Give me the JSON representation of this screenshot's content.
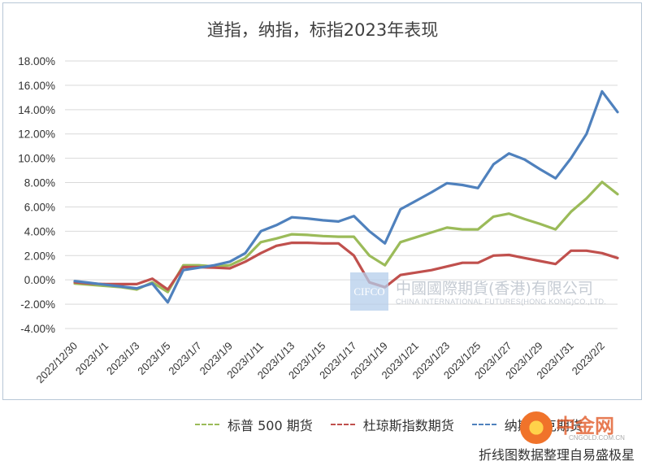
{
  "chart_data": {
    "type": "line",
    "title": "道指，纳指，标指2023年表现",
    "yticks": [
      "-4.00%",
      "-2.00%",
      "0.00%",
      "2.00%",
      "4.00%",
      "6.00%",
      "8.00%",
      "10.00%",
      "12.00%",
      "14.00%",
      "16.00%",
      "18.00%"
    ],
    "ylim": [
      -4,
      18
    ],
    "x": [
      "2022/12/30",
      "2022/12/31",
      "2023/1/1",
      "2023/1/2",
      "2023/1/3",
      "2023/1/4",
      "2023/1/5",
      "2023/1/6",
      "2023/1/7",
      "2023/1/8",
      "2023/1/9",
      "2023/1/10",
      "2023/1/11",
      "2023/1/12",
      "2023/1/13",
      "2023/1/14",
      "2023/1/15",
      "2023/1/16",
      "2023/1/17",
      "2023/1/18",
      "2023/1/19",
      "2023/1/20",
      "2023/1/21",
      "2023/1/22",
      "2023/1/23",
      "2023/1/24",
      "2023/1/25",
      "2023/1/26",
      "2023/1/27",
      "2023/1/28",
      "2023/1/29",
      "2023/1/30",
      "2023/1/31",
      "2023/2/1",
      "2023/2/2",
      "2023/2/3"
    ],
    "xticks": [
      "2022/12/30",
      "2023/1/1",
      "2023/1/3",
      "2023/1/5",
      "2023/1/7",
      "2023/1/9",
      "2023/1/11",
      "2023/1/13",
      "2023/1/15",
      "2023/1/17",
      "2023/1/19",
      "2023/1/21",
      "2023/1/23",
      "2023/1/25",
      "2023/1/27",
      "2023/1/29",
      "2023/1/31",
      "2023/2/2"
    ],
    "series": [
      {
        "name": "标普 500 期货",
        "color": "#9bbb59",
        "values": [
          -0.3,
          -0.4,
          -0.5,
          -0.6,
          -0.8,
          -0.2,
          -1.0,
          1.2,
          1.2,
          1.1,
          1.2,
          1.8,
          3.1,
          3.4,
          3.75,
          3.7,
          3.6,
          3.55,
          3.55,
          2.0,
          1.2,
          3.1,
          3.5,
          3.9,
          4.3,
          4.15,
          4.15,
          5.2,
          5.45,
          5.0,
          4.6,
          4.15,
          5.6,
          6.7,
          8.05,
          7.05
        ]
      },
      {
        "name": "杜琼斯指数期货",
        "color": "#c0504d",
        "values": [
          -0.2,
          -0.3,
          -0.35,
          -0.35,
          -0.35,
          0.1,
          -0.8,
          1.05,
          1.05,
          1.0,
          0.95,
          1.5,
          2.2,
          2.8,
          3.05,
          3.05,
          3.0,
          3.0,
          2.0,
          -0.2,
          -0.6,
          0.4,
          0.6,
          0.8,
          1.1,
          1.4,
          1.4,
          2.0,
          2.05,
          1.8,
          1.55,
          1.3,
          2.4,
          2.4,
          2.2,
          1.8
        ]
      },
      {
        "name": "纳斯达克期货",
        "color": "#4f81bd",
        "values": [
          -0.1,
          -0.25,
          -0.4,
          -0.55,
          -0.7,
          -0.3,
          -1.85,
          0.8,
          1.0,
          1.2,
          1.5,
          2.2,
          4.0,
          4.5,
          5.15,
          5.05,
          4.9,
          4.8,
          5.25,
          4.0,
          3.0,
          5.8,
          6.5,
          7.2,
          7.95,
          7.8,
          7.55,
          9.5,
          10.4,
          9.9,
          9.1,
          8.35,
          10.0,
          12.0,
          15.5,
          13.8
        ]
      }
    ],
    "legend_position": "bottom",
    "grid": "horizontal"
  },
  "source_note": "折线图数据整理自易盛极星",
  "watermark": {
    "box_text": "CIFCO",
    "cn_text": "中國國際期貨(香港)有限公司",
    "en_text": "CHINA INTERNATIONAL FUTURES(HONG KONG)CO.,LTD."
  },
  "logo": {
    "text": "中金网",
    "sub": "CNGOLD.COM.CN"
  }
}
